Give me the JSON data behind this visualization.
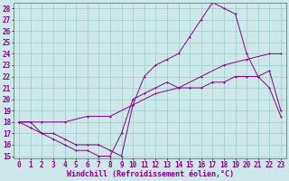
{
  "xlabel": "Windchill (Refroidissement éolien,°C)",
  "bg_color": "#cce8e8",
  "line_color": "#880088",
  "grid_color": "#99cccc",
  "ylim": [
    15,
    28
  ],
  "xlim": [
    -0.5,
    23.5
  ],
  "yticks": [
    15,
    16,
    17,
    18,
    19,
    20,
    21,
    22,
    23,
    24,
    25,
    26,
    27,
    28
  ],
  "xticks": [
    0,
    1,
    2,
    3,
    4,
    5,
    6,
    7,
    8,
    9,
    10,
    11,
    12,
    13,
    14,
    15,
    16,
    17,
    18,
    19,
    20,
    21,
    22,
    23
  ],
  "line_top_x": [
    0,
    1,
    2,
    3,
    4,
    5,
    6,
    7,
    8,
    9,
    10,
    11,
    12,
    13,
    14,
    15,
    16,
    17,
    18,
    19,
    20,
    21,
    22,
    23
  ],
  "line_top_y": [
    18,
    18,
    17,
    17,
    16.5,
    16,
    16,
    16,
    15.5,
    15,
    19.5,
    22,
    23,
    23.5,
    24,
    25.5,
    27,
    28.5,
    28,
    27.5,
    24,
    22,
    21,
    18.5
  ],
  "line_mid_x": [
    0,
    2,
    4,
    6,
    8,
    10,
    12,
    14,
    16,
    18,
    20,
    22,
    23
  ],
  "line_mid_y": [
    18,
    18,
    18,
    18.5,
    18.5,
    19.5,
    20.5,
    21,
    22,
    23,
    23.5,
    24,
    24
  ],
  "line_bot_x": [
    0,
    1,
    2,
    3,
    4,
    5,
    6,
    7,
    8,
    9,
    10,
    11,
    12,
    13,
    14,
    15,
    16,
    17,
    18,
    19,
    20,
    21,
    22,
    23
  ],
  "line_bot_y": [
    18,
    17.5,
    17,
    16.5,
    16,
    15.5,
    15.5,
    15,
    15,
    17,
    20,
    20.5,
    21,
    21.5,
    21,
    21,
    21,
    21.5,
    21.5,
    22,
    22,
    22,
    22.5,
    19
  ],
  "tick_fontsize": 5.5,
  "label_fontsize": 6.0
}
